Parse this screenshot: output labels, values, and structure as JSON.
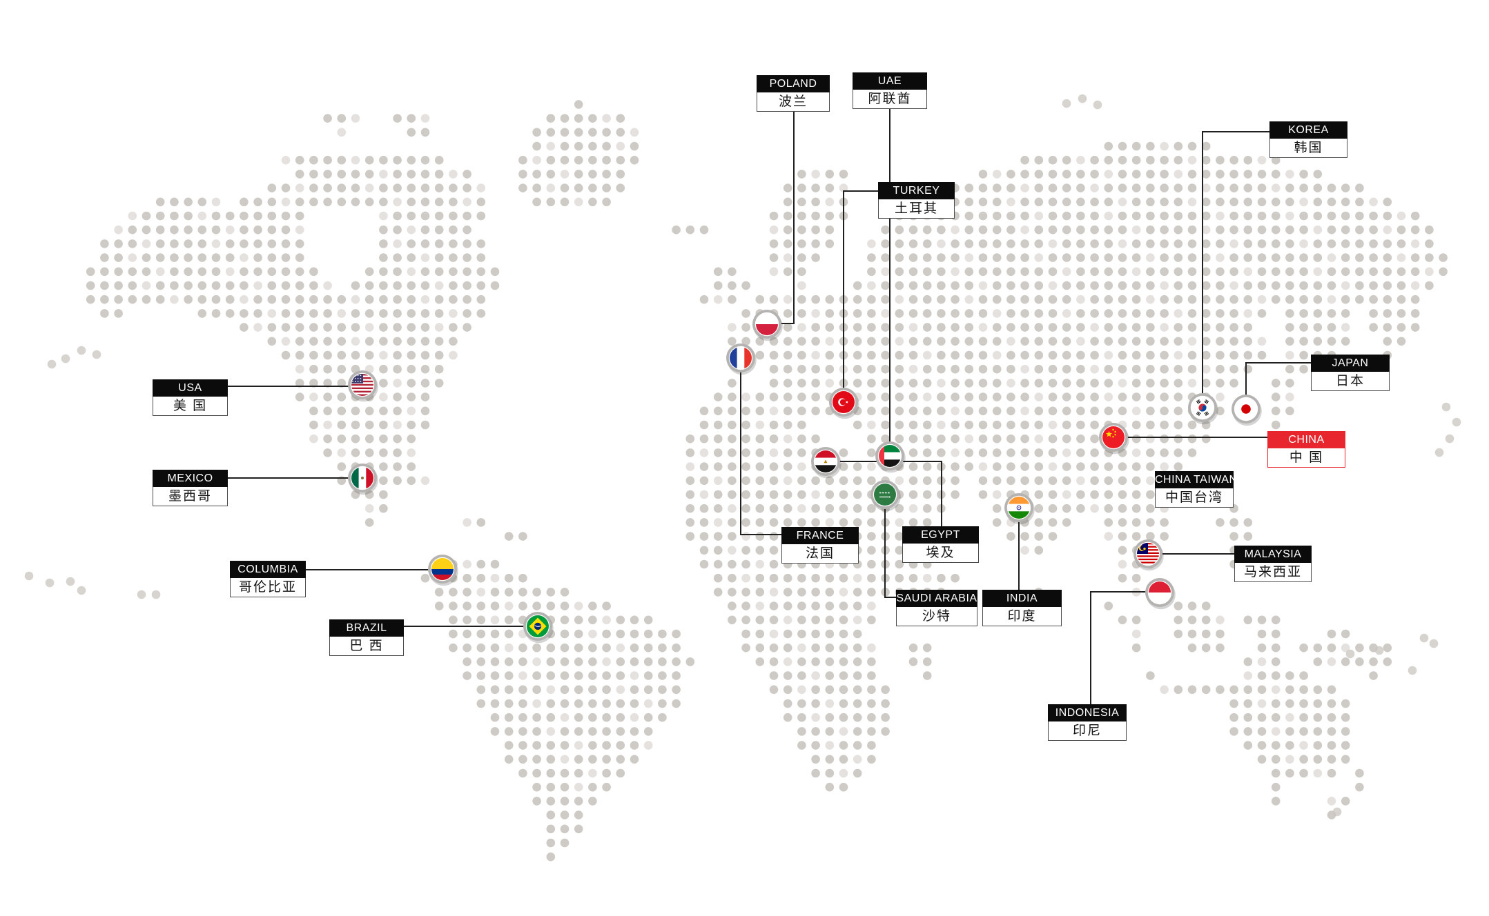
{
  "map": {
    "kind": "dotted-world-map",
    "background_color": "#ffffff",
    "dot_color": "#c9c4bf",
    "connector_color": "#1f1f1f",
    "label_header_bg": "#0b0b0b",
    "label_header_text_color": "#ffffff",
    "highlight_color": "#e8262d",
    "marker_ring_color": "#b5b3b1"
  },
  "countries": [
    {
      "id": "poland",
      "en": "POLAND",
      "cn": "波兰",
      "flag": "poland-flag",
      "highlight": false
    },
    {
      "id": "uae",
      "en": "UAE",
      "cn": "阿联酋",
      "flag": "uae-flag",
      "highlight": false
    },
    {
      "id": "korea",
      "en": "KOREA",
      "cn": "韩国",
      "flag": "korea-flag",
      "highlight": false
    },
    {
      "id": "turkey",
      "en": "TURKEY",
      "cn": "土耳其",
      "flag": "turkey-flag",
      "highlight": false
    },
    {
      "id": "japan",
      "en": "JAPAN",
      "cn": "日本",
      "flag": "japan-flag",
      "highlight": false
    },
    {
      "id": "china",
      "en": "CHINA",
      "cn": "中 国",
      "flag": "china-flag",
      "highlight": true
    },
    {
      "id": "usa",
      "en": "USA",
      "cn": "美 国",
      "flag": "usa-flag",
      "highlight": false
    },
    {
      "id": "mexico",
      "en": "MEXICO",
      "cn": "墨西哥",
      "flag": "mexico-flag",
      "highlight": false
    },
    {
      "id": "china-taiwan",
      "en": "CHINA TAIWAN",
      "cn": "中国台湾",
      "flag": null,
      "highlight": false
    },
    {
      "id": "columbia",
      "en": "COLUMBIA",
      "cn": "哥伦比亚",
      "flag": "colombia-flag",
      "highlight": false
    },
    {
      "id": "france",
      "en": "FRANCE",
      "cn": "法国",
      "flag": "france-flag",
      "highlight": false
    },
    {
      "id": "egypt",
      "en": "EGYPT",
      "cn": "埃及",
      "flag": "egypt-flag",
      "highlight": false
    },
    {
      "id": "malaysia",
      "en": "MALAYSIA",
      "cn": "马来西亚",
      "flag": "malaysia-flag",
      "highlight": false
    },
    {
      "id": "saudi-arabia",
      "en": "SAUDI ARABIA",
      "cn": "沙特",
      "flag": "saudi-arabia-flag",
      "highlight": false
    },
    {
      "id": "india",
      "en": "INDIA",
      "cn": "印度",
      "flag": "india-flag",
      "highlight": false
    },
    {
      "id": "brazil",
      "en": "BRAZIL",
      "cn": "巴 西",
      "flag": "brazil-flag",
      "highlight": false
    },
    {
      "id": "indonesia",
      "en": "INDONESIA",
      "cn": "印尼",
      "flag": "indonesia-flag",
      "highlight": false
    }
  ]
}
